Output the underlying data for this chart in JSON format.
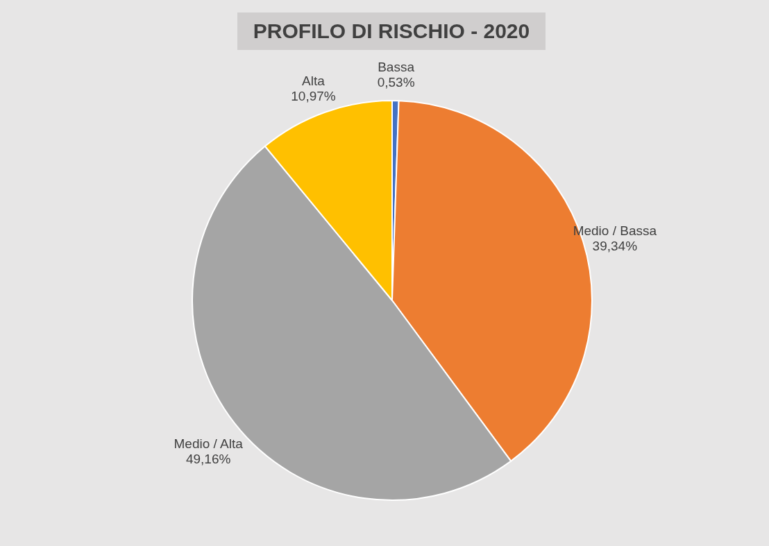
{
  "chart_data": {
    "type": "pie",
    "title": "PROFILO DI RISCHIO - 2020",
    "categories": [
      "Bassa",
      "Medio / Bassa",
      "Medio / Alta",
      "Alta"
    ],
    "values": [
      0.53,
      39.34,
      49.16,
      10.97
    ],
    "colors": [
      "#4472c4",
      "#ed7d31",
      "#a5a5a5",
      "#ffc000"
    ],
    "value_labels": [
      "0,53%",
      "39,34%",
      "49,16%",
      "10,97%"
    ]
  }
}
